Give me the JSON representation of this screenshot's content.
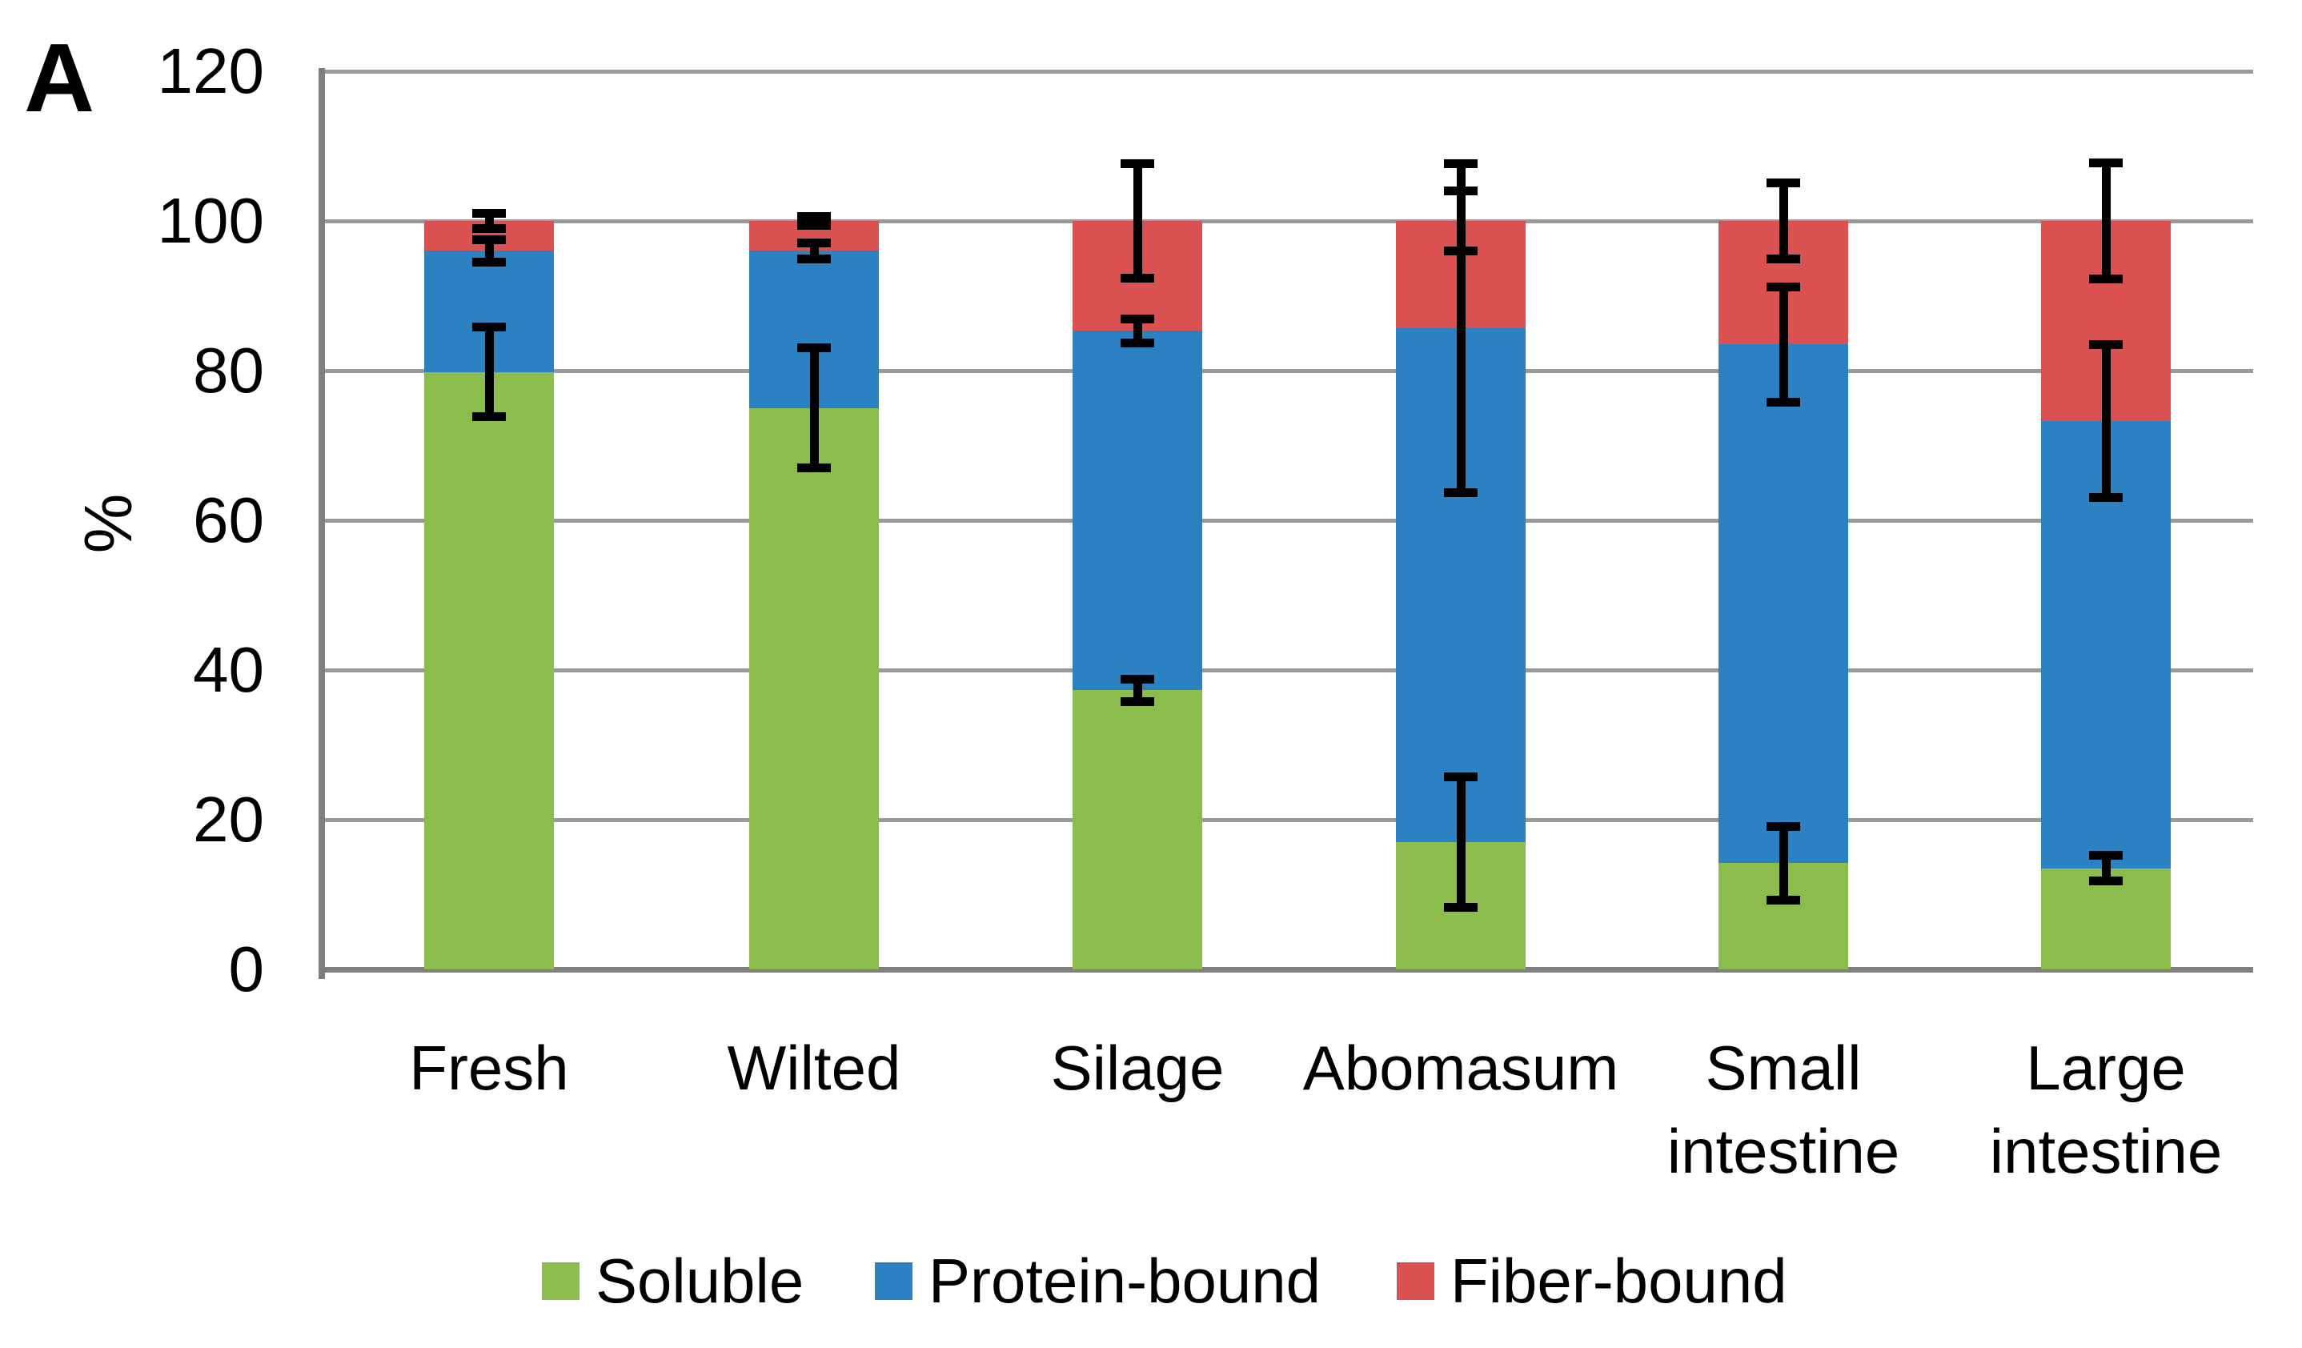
{
  "panel_label": "A",
  "chart_data": {
    "type": "bar",
    "subtype": "stacked-vertical-with-error-bars",
    "title": "",
    "xlabel": "",
    "ylabel": "%",
    "ylim": [
      0,
      120
    ],
    "ytick_values": [
      120,
      100,
      80,
      60,
      40,
      20,
      0
    ],
    "ytick_labels": [
      "120",
      "100",
      "80",
      "60",
      "40",
      "20",
      "0"
    ],
    "grid": "horizontal",
    "legend_position": "bottom",
    "categories": [
      "Fresh",
      "Wilted",
      "Silage",
      "Abomasum",
      "Small\nintestine",
      "Large\nintestine"
    ],
    "series": [
      {
        "name": "Soluble",
        "color": "#8cbd4c",
        "values": [
          79.8,
          75.0,
          37.3,
          17.0,
          14.2,
          13.5
        ],
        "error_at_segment_top": [
          6.0,
          8.0,
          1.5,
          8.7,
          4.9,
          1.7
        ]
      },
      {
        "name": "Protein-bound",
        "color": "#2b81c1",
        "values": [
          16.2,
          21.0,
          48.0,
          68.7,
          69.3,
          59.8
        ],
        "cumulative_top": [
          96.0,
          96.0,
          85.3,
          85.7,
          83.5,
          73.3
        ],
        "error_at_segment_top": [
          1.5,
          1.1,
          1.6,
          22.0,
          7.7,
          10.2
        ]
      },
      {
        "name": "Fiber-bound",
        "color": "#d95251",
        "values": [
          4.0,
          4.0,
          14.7,
          14.3,
          16.5,
          26.7
        ],
        "cumulative_top": [
          100,
          100,
          100,
          100,
          100,
          100
        ],
        "error_at_segment_top": [
          1.0,
          0.6,
          7.7,
          4.0,
          5.1,
          7.8
        ]
      }
    ],
    "colors": {
      "gridline": "#9a9a9a",
      "axis": "#7f7f7f",
      "error_bar": "#000000",
      "background": "#ffffff"
    }
  }
}
